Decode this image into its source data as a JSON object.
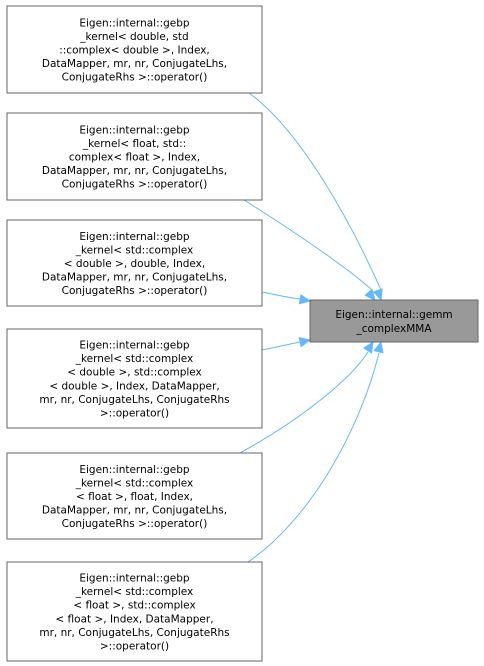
{
  "graph": {
    "edge_color": "#63b8ff",
    "target": {
      "id": "gemm_complexMMA",
      "lines": [
        "Eigen::internal::gemm",
        "_complexMMA"
      ],
      "fill": "#999999"
    },
    "sources": [
      {
        "id": "gebp_cd_cd",
        "lines": [
          "Eigen::internal::gebp",
          "_kernel< double, std",
          "::complex< double >, Index,",
          "DataMapper, mr, nr, ConjugateLhs,",
          "ConjugateRhs >::operator()"
        ]
      },
      {
        "id": "gebp_f_cf",
        "lines": [
          "Eigen::internal::gebp",
          "_kernel< float, std::",
          "complex< float >, Index,",
          "DataMapper, mr, nr, ConjugateLhs,",
          "ConjugateRhs >::operator()"
        ]
      },
      {
        "id": "gebp_cd_d",
        "lines": [
          "Eigen::internal::gebp",
          "_kernel< std::complex",
          "< double >, double, Index,",
          "DataMapper, mr, nr, ConjugateLhs,",
          "ConjugateRhs >::operator()"
        ]
      },
      {
        "id": "gebp_cd_cd2",
        "lines": [
          "Eigen::internal::gebp",
          "_kernel< std::complex",
          "< double >, std::complex",
          "< double >, Index, DataMapper,",
          "mr, nr, ConjugateLhs, ConjugateRhs",
          ">::operator()"
        ]
      },
      {
        "id": "gebp_cf_f",
        "lines": [
          "Eigen::internal::gebp",
          "_kernel< std::complex",
          "< float >, float, Index,",
          "DataMapper, mr, nr, ConjugateLhs,",
          "ConjugateRhs >::operator()"
        ]
      },
      {
        "id": "gebp_cf_cf",
        "lines": [
          "Eigen::internal::gebp",
          "_kernel< std::complex",
          "< float >, std::complex",
          "< float >, Index, DataMapper,",
          "mr, nr, ConjugateLhs, ConjugateRhs",
          ">::operator()"
        ]
      }
    ]
  }
}
